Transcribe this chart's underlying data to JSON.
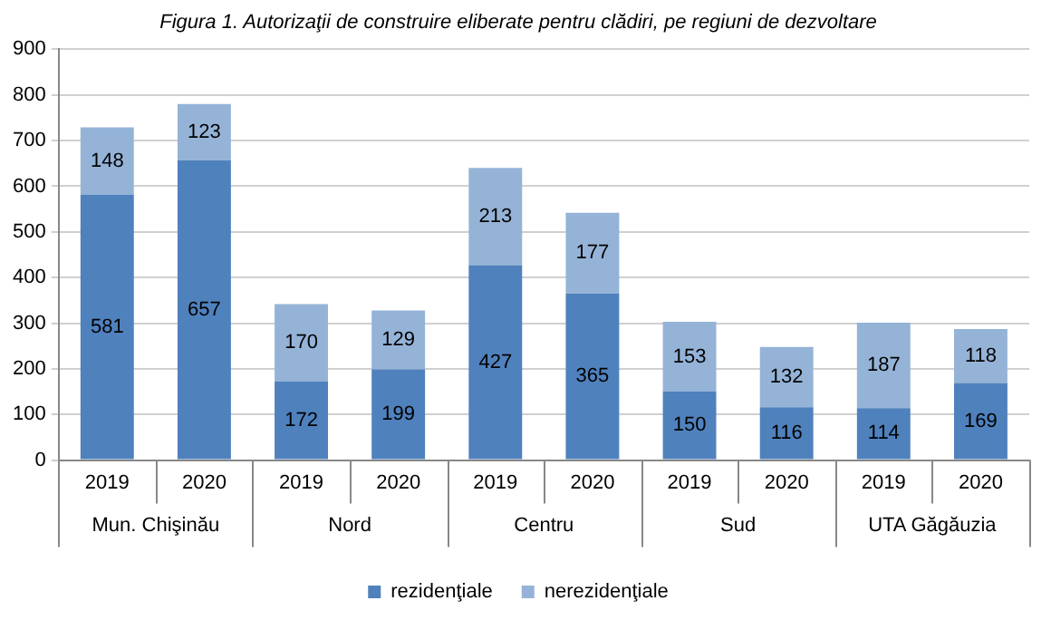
{
  "chart_data": {
    "type": "bar",
    "title": "Figura 1. Autorizaţii de construire eliberate pentru clădiri, pe regiuni de dezvoltare",
    "categories": [
      "2019",
      "2020",
      "2019",
      "2020",
      "2019",
      "2020",
      "2019",
      "2020",
      "2019",
      "2020"
    ],
    "annotations": [
      "Mun. Chişinău",
      "Nord",
      "Centru",
      "Sud",
      "UTA Găgăuzia"
    ],
    "stacked": true,
    "data_labels": true,
    "grid": "y",
    "legend": "bottom",
    "ylim": [
      0,
      900
    ],
    "yticks": [
      0,
      100,
      200,
      300,
      400,
      500,
      600,
      700,
      800,
      900
    ],
    "series": [
      {
        "name": "rezidenţiale",
        "color": "#4f81bd",
        "values": [
          581,
          657,
          172,
          199,
          427,
          365,
          150,
          116,
          114,
          169
        ]
      },
      {
        "name": "nerezidenţiale",
        "color": "#95b3d7",
        "values": [
          148,
          123,
          170,
          129,
          213,
          177,
          153,
          132,
          187,
          118
        ]
      }
    ]
  }
}
